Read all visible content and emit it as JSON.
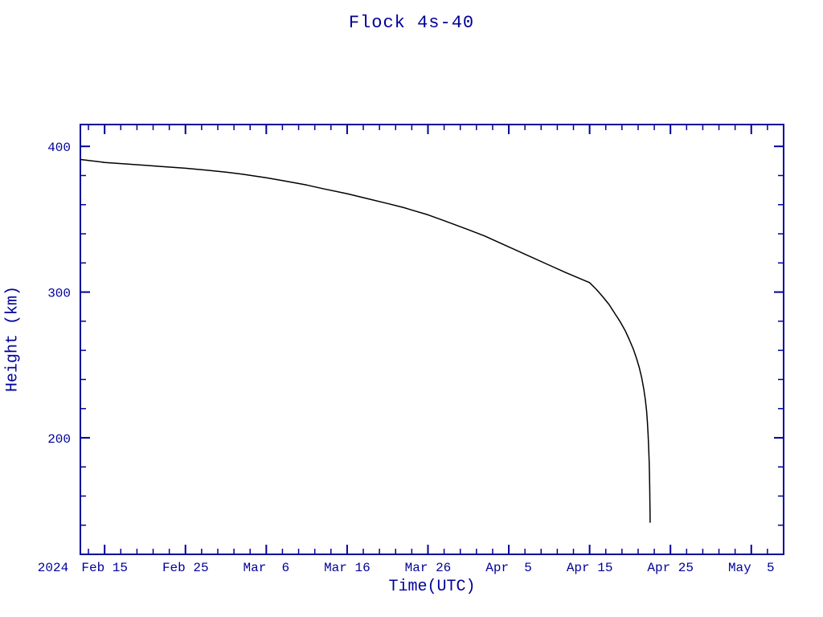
{
  "page": {
    "title": "Flock 4s-40"
  },
  "chart_data": {
    "type": "line",
    "title": "Flock 4s-40",
    "xlabel": "Time(UTC)",
    "ylabel": "Height (km)",
    "year_label": "2024",
    "x_unit": "days since 2024-02-12",
    "xlim": [
      0,
      87
    ],
    "ylim": [
      120,
      415
    ],
    "x_ticks": [
      {
        "day": 3,
        "label": "Feb 15"
      },
      {
        "day": 13,
        "label": "Feb 25"
      },
      {
        "day": 23,
        "label": "Mar  6"
      },
      {
        "day": 33,
        "label": "Mar 16"
      },
      {
        "day": 43,
        "label": "Mar 26"
      },
      {
        "day": 53,
        "label": "Apr  5"
      },
      {
        "day": 63,
        "label": "Apr 15"
      },
      {
        "day": 73,
        "label": "Apr 25"
      },
      {
        "day": 83,
        "label": "May  5"
      }
    ],
    "x_minor_step": 2,
    "y_ticks": [
      200,
      300,
      400
    ],
    "y_minor_step": 20,
    "grid": false,
    "legend": "none",
    "axis_color": "#000099",
    "line_color": "#000000",
    "series": [
      {
        "name": "Flock 4s-40 height",
        "points": [
          [
            0,
            391
          ],
          [
            3,
            389
          ],
          [
            5,
            388.2
          ],
          [
            8,
            387
          ],
          [
            10,
            386.2
          ],
          [
            13,
            385
          ],
          [
            15,
            384
          ],
          [
            18,
            382.3
          ],
          [
            20,
            381
          ],
          [
            23,
            378.5
          ],
          [
            25,
            376.5
          ],
          [
            28,
            373.5
          ],
          [
            30,
            371
          ],
          [
            33,
            367.5
          ],
          [
            35,
            364.8
          ],
          [
            38,
            360.8
          ],
          [
            40,
            358
          ],
          [
            43,
            353
          ],
          [
            45,
            349
          ],
          [
            48,
            342.8
          ],
          [
            50,
            338.5
          ],
          [
            53,
            331
          ],
          [
            55,
            326
          ],
          [
            58,
            318.5
          ],
          [
            60,
            313.5
          ],
          [
            63,
            306.5
          ],
          [
            63.8,
            302
          ],
          [
            64.6,
            297
          ],
          [
            65.4,
            291.5
          ],
          [
            66.1,
            285.5
          ],
          [
            66.8,
            279.5
          ],
          [
            67.4,
            273.5
          ],
          [
            67.9,
            267.5
          ],
          [
            68.4,
            261
          ],
          [
            68.8,
            254.5
          ],
          [
            69.15,
            248
          ],
          [
            69.45,
            241
          ],
          [
            69.7,
            233.5
          ],
          [
            69.9,
            226
          ],
          [
            70.05,
            218.5
          ],
          [
            70.15,
            211
          ],
          [
            70.24,
            202
          ],
          [
            70.31,
            193
          ],
          [
            70.37,
            184
          ],
          [
            70.41,
            175
          ],
          [
            70.44,
            166
          ],
          [
            70.46,
            157
          ],
          [
            70.475,
            149
          ],
          [
            70.48,
            142
          ]
        ]
      }
    ]
  }
}
